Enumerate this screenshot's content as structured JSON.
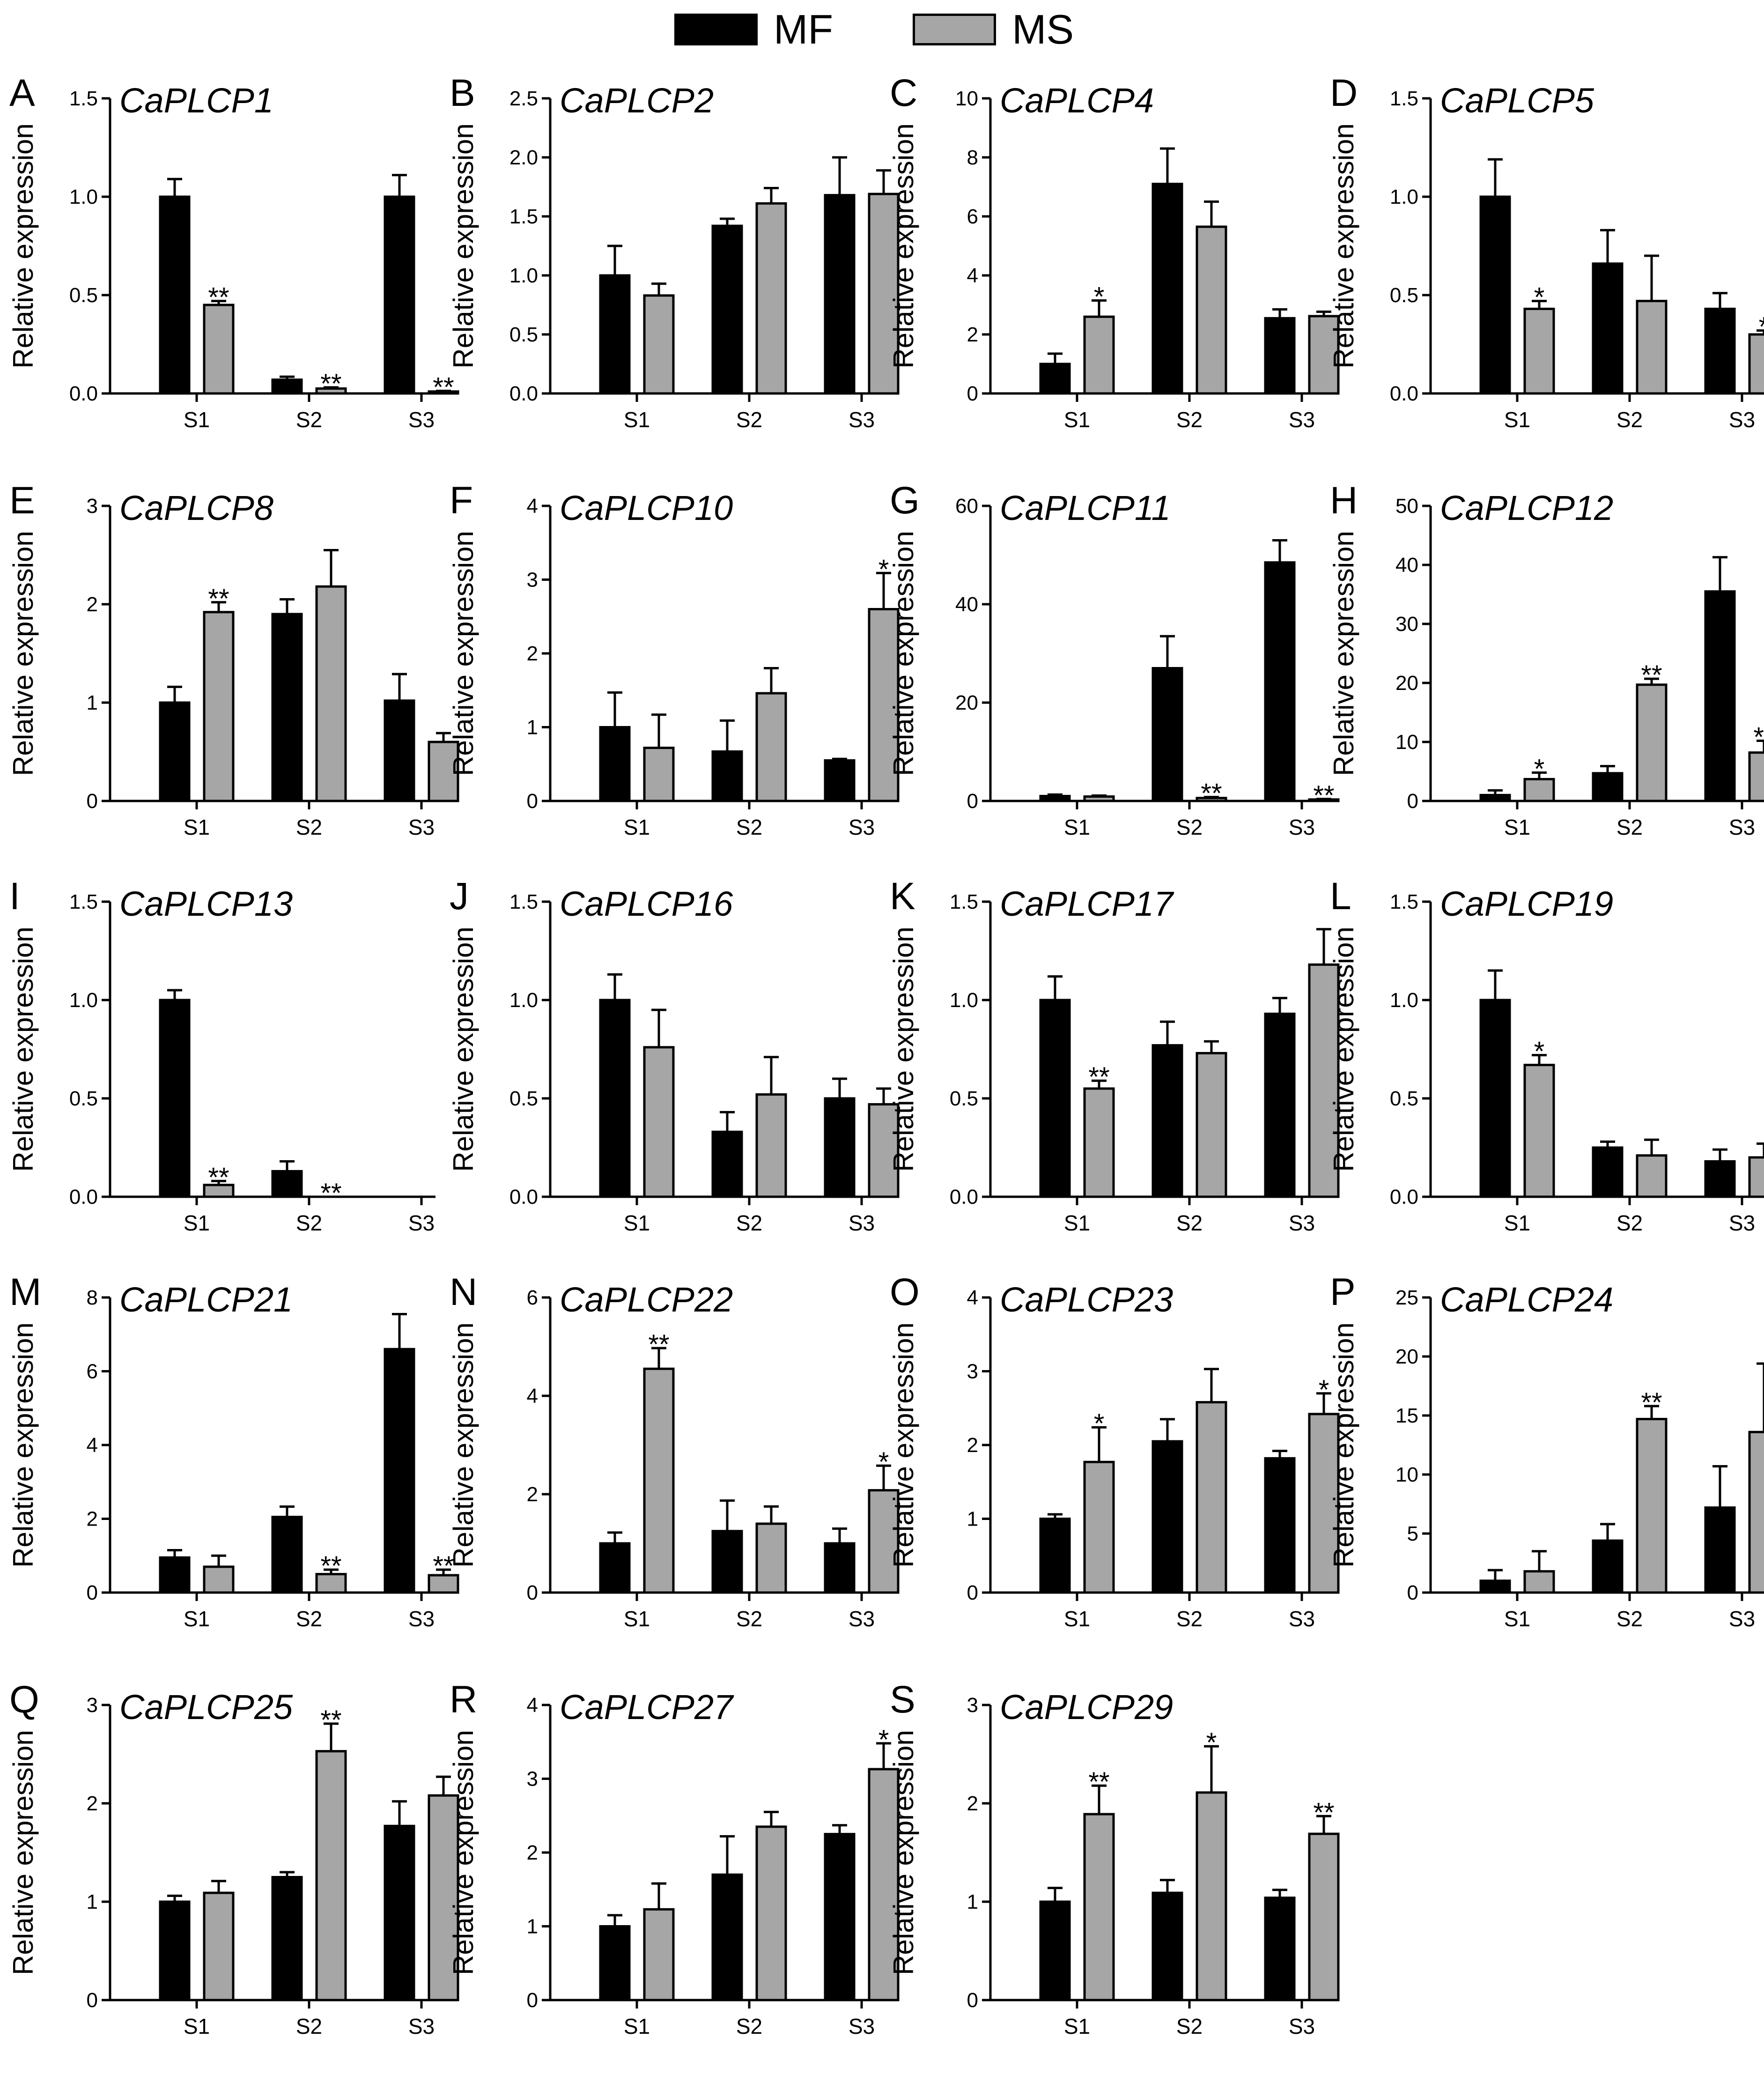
{
  "legend": [
    {
      "label": "MF",
      "color": "#000000"
    },
    {
      "label": "MS",
      "color": "#a6a6a6"
    }
  ],
  "colors": {
    "MF": "#000000",
    "MS": "#a6a6a6",
    "axis": "#000000"
  },
  "chart_data": [
    {
      "panel": "A",
      "title": "CaPLCP1",
      "type": "bar",
      "ylabel": "Relative expression",
      "categories": [
        "S1",
        "S2",
        "S3"
      ],
      "ylim": [
        0,
        1.5
      ],
      "yticks": [
        "0.0",
        "0.5",
        "1.0",
        "1.5"
      ],
      "series": [
        {
          "name": "MF",
          "values": [
            1.0,
            0.07,
            1.0
          ],
          "errors": [
            0.09,
            0.015,
            0.11
          ]
        },
        {
          "name": "MS",
          "values": [
            0.45,
            0.025,
            0.01
          ],
          "errors": [
            0.02,
            0.006,
            0.003
          ]
        }
      ],
      "annotations": [
        {
          "series": "MS",
          "category": "S1",
          "text": "**"
        },
        {
          "series": "MS",
          "category": "S2",
          "text": "**"
        },
        {
          "series": "MS",
          "category": "S3",
          "text": "**"
        }
      ]
    },
    {
      "panel": "B",
      "title": "CaPLCP2",
      "type": "bar",
      "ylabel": "Relative expression",
      "categories": [
        "S1",
        "S2",
        "S3"
      ],
      "ylim": [
        0,
        2.5
      ],
      "yticks": [
        "0.0",
        "0.5",
        "1.0",
        "1.5",
        "2.0",
        "2.5"
      ],
      "series": [
        {
          "name": "MF",
          "values": [
            1.0,
            1.42,
            1.68
          ],
          "errors": [
            0.25,
            0.06,
            0.32
          ]
        },
        {
          "name": "MS",
          "values": [
            0.83,
            1.61,
            1.69
          ],
          "errors": [
            0.1,
            0.13,
            0.2
          ]
        }
      ],
      "annotations": []
    },
    {
      "panel": "C",
      "title": "CaPLCP4",
      "type": "bar",
      "ylabel": "Relative expression",
      "categories": [
        "S1",
        "S2",
        "S3"
      ],
      "ylim": [
        0,
        10
      ],
      "yticks": [
        "0",
        "2",
        "4",
        "6",
        "8",
        "10"
      ],
      "series": [
        {
          "name": "MF",
          "values": [
            1.0,
            7.1,
            2.55
          ],
          "errors": [
            0.35,
            1.2,
            0.3
          ]
        },
        {
          "name": "MS",
          "values": [
            2.6,
            5.65,
            2.62
          ],
          "errors": [
            0.55,
            0.85,
            0.15
          ]
        }
      ],
      "annotations": [
        {
          "series": "MS",
          "category": "S1",
          "text": "*"
        }
      ]
    },
    {
      "panel": "D",
      "title": "CaPLCP5",
      "type": "bar",
      "ylabel": "Relative expression",
      "categories": [
        "S1",
        "S2",
        "S3"
      ],
      "ylim": [
        0,
        1.5
      ],
      "yticks": [
        "0.0",
        "0.5",
        "1.0",
        "1.5"
      ],
      "series": [
        {
          "name": "MF",
          "values": [
            1.0,
            0.66,
            0.43
          ],
          "errors": [
            0.19,
            0.17,
            0.08
          ]
        },
        {
          "name": "MS",
          "values": [
            0.43,
            0.47,
            0.3
          ],
          "errors": [
            0.04,
            0.23,
            0.02
          ]
        }
      ],
      "annotations": [
        {
          "series": "MS",
          "category": "S1",
          "text": "*"
        },
        {
          "series": "MS",
          "category": "S3",
          "text": "*"
        }
      ]
    },
    {
      "panel": "E",
      "title": "CaPLCP8",
      "type": "bar",
      "ylabel": "Relative expression",
      "categories": [
        "S1",
        "S2",
        "S3"
      ],
      "ylim": [
        0,
        3
      ],
      "yticks": [
        "0",
        "1",
        "2",
        "3"
      ],
      "series": [
        {
          "name": "MF",
          "values": [
            1.0,
            1.9,
            1.02
          ],
          "errors": [
            0.16,
            0.15,
            0.27
          ]
        },
        {
          "name": "MS",
          "values": [
            1.92,
            2.18,
            0.6
          ],
          "errors": [
            0.1,
            0.37,
            0.09
          ]
        }
      ],
      "annotations": [
        {
          "series": "MS",
          "category": "S1",
          "text": "**"
        }
      ]
    },
    {
      "panel": "F",
      "title": "CaPLCP10",
      "type": "bar",
      "ylabel": "Relative expression",
      "categories": [
        "S1",
        "S2",
        "S3"
      ],
      "ylim": [
        0,
        4
      ],
      "yticks": [
        "0",
        "1",
        "2",
        "3",
        "4"
      ],
      "series": [
        {
          "name": "MF",
          "values": [
            1.0,
            0.67,
            0.55
          ],
          "errors": [
            0.47,
            0.42,
            0.02
          ]
        },
        {
          "name": "MS",
          "values": [
            0.72,
            1.46,
            2.6
          ],
          "errors": [
            0.45,
            0.34,
            0.49
          ]
        }
      ],
      "annotations": [
        {
          "series": "MS",
          "category": "S3",
          "text": "*"
        }
      ]
    },
    {
      "panel": "G",
      "title": "CaPLCP11",
      "type": "bar",
      "ylabel": "Relative expression",
      "categories": [
        "S1",
        "S2",
        "S3"
      ],
      "ylim": [
        0,
        60
      ],
      "yticks": [
        "0",
        "20",
        "40",
        "60"
      ],
      "series": [
        {
          "name": "MF",
          "values": [
            1.0,
            27.0,
            48.5
          ],
          "errors": [
            0.3,
            6.5,
            4.5
          ]
        },
        {
          "name": "MS",
          "values": [
            0.9,
            0.6,
            0.3
          ],
          "errors": [
            0.2,
            0.2,
            0.1
          ]
        }
      ],
      "annotations": [
        {
          "series": "MS",
          "category": "S2",
          "text": "**"
        },
        {
          "series": "MS",
          "category": "S3",
          "text": "**"
        }
      ]
    },
    {
      "panel": "H",
      "title": "CaPLCP12",
      "type": "bar",
      "ylabel": "Relative expression",
      "categories": [
        "S1",
        "S2",
        "S3"
      ],
      "ylim": [
        0,
        50
      ],
      "yticks": [
        "0",
        "10",
        "20",
        "30",
        "40",
        "50"
      ],
      "series": [
        {
          "name": "MF",
          "values": [
            1.0,
            4.7,
            35.5
          ],
          "errors": [
            0.8,
            1.2,
            5.8
          ]
        },
        {
          "name": "MS",
          "values": [
            3.7,
            19.7,
            8.2
          ],
          "errors": [
            1.1,
            1.0,
            2.0
          ]
        }
      ],
      "annotations": [
        {
          "series": "MS",
          "category": "S1",
          "text": "*"
        },
        {
          "series": "MS",
          "category": "S2",
          "text": "**"
        },
        {
          "series": "MS",
          "category": "S3",
          "text": "**"
        }
      ]
    },
    {
      "panel": "I",
      "title": "CaPLCP13",
      "type": "bar",
      "ylabel": "Relative expression",
      "categories": [
        "S1",
        "S2",
        "S3"
      ],
      "ylim": [
        0,
        1.5
      ],
      "yticks": [
        "0.0",
        "0.5",
        "1.0",
        "1.5"
      ],
      "series": [
        {
          "name": "MF",
          "values": [
            1.0,
            0.13,
            0.0
          ],
          "errors": [
            0.05,
            0.05,
            0
          ]
        },
        {
          "name": "MS",
          "values": [
            0.06,
            0.0,
            0.0
          ],
          "errors": [
            0.02,
            0,
            0
          ]
        }
      ],
      "annotations": [
        {
          "series": "MS",
          "category": "S1",
          "text": "**"
        },
        {
          "series": "MS",
          "category": "S2",
          "text": "**"
        }
      ]
    },
    {
      "panel": "J",
      "title": "CaPLCP16",
      "type": "bar",
      "ylabel": "Relative expression",
      "categories": [
        "S1",
        "S2",
        "S3"
      ],
      "ylim": [
        0,
        1.5
      ],
      "yticks": [
        "0.0",
        "0.5",
        "1.0",
        "1.5"
      ],
      "series": [
        {
          "name": "MF",
          "values": [
            1.0,
            0.33,
            0.5
          ],
          "errors": [
            0.13,
            0.1,
            0.1
          ]
        },
        {
          "name": "MS",
          "values": [
            0.76,
            0.52,
            0.47
          ],
          "errors": [
            0.19,
            0.19,
            0.08
          ]
        }
      ],
      "annotations": []
    },
    {
      "panel": "K",
      "title": "CaPLCP17",
      "type": "bar",
      "ylabel": "Relative expression",
      "categories": [
        "S1",
        "S2",
        "S3"
      ],
      "ylim": [
        0,
        1.5
      ],
      "yticks": [
        "0.0",
        "0.5",
        "1.0",
        "1.5"
      ],
      "series": [
        {
          "name": "MF",
          "values": [
            1.0,
            0.77,
            0.93
          ],
          "errors": [
            0.12,
            0.12,
            0.08
          ]
        },
        {
          "name": "MS",
          "values": [
            0.55,
            0.73,
            1.18
          ],
          "errors": [
            0.04,
            0.06,
            0.18
          ]
        }
      ],
      "annotations": [
        {
          "series": "MS",
          "category": "S1",
          "text": "**"
        }
      ]
    },
    {
      "panel": "L",
      "title": "CaPLCP19",
      "type": "bar",
      "ylabel": "Relative expression",
      "categories": [
        "S1",
        "S2",
        "S3"
      ],
      "ylim": [
        0,
        1.5
      ],
      "yticks": [
        "0.0",
        "0.5",
        "1.0",
        "1.5"
      ],
      "series": [
        {
          "name": "MF",
          "values": [
            1.0,
            0.25,
            0.18
          ],
          "errors": [
            0.15,
            0.03,
            0.06
          ]
        },
        {
          "name": "MS",
          "values": [
            0.67,
            0.21,
            0.2
          ],
          "errors": [
            0.05,
            0.08,
            0.07
          ]
        }
      ],
      "annotations": [
        {
          "series": "MS",
          "category": "S1",
          "text": "*"
        }
      ]
    },
    {
      "panel": "M",
      "title": "CaPLCP21",
      "type": "bar",
      "ylabel": "Relative expression",
      "categories": [
        "S1",
        "S2",
        "S3"
      ],
      "ylim": [
        0,
        8
      ],
      "yticks": [
        "0",
        "2",
        "4",
        "6",
        "8"
      ],
      "series": [
        {
          "name": "MF",
          "values": [
            0.95,
            2.05,
            6.6
          ],
          "errors": [
            0.2,
            0.28,
            0.95
          ]
        },
        {
          "name": "MS",
          "values": [
            0.7,
            0.5,
            0.47
          ],
          "errors": [
            0.3,
            0.12,
            0.15
          ]
        }
      ],
      "annotations": [
        {
          "series": "MS",
          "category": "S2",
          "text": "**"
        },
        {
          "series": "MS",
          "category": "S3",
          "text": "**"
        }
      ]
    },
    {
      "panel": "N",
      "title": "CaPLCP22",
      "type": "bar",
      "ylabel": "Relative expression",
      "categories": [
        "S1",
        "S2",
        "S3"
      ],
      "ylim": [
        0,
        6
      ],
      "yticks": [
        "0",
        "2",
        "4",
        "6"
      ],
      "series": [
        {
          "name": "MF",
          "values": [
            1.0,
            1.25,
            1.0
          ],
          "errors": [
            0.22,
            0.62,
            0.3
          ]
        },
        {
          "name": "MS",
          "values": [
            4.55,
            1.4,
            2.08
          ],
          "errors": [
            0.42,
            0.35,
            0.5
          ]
        }
      ],
      "annotations": [
        {
          "series": "MS",
          "category": "S1",
          "text": "**"
        },
        {
          "series": "MS",
          "category": "S3",
          "text": "*"
        }
      ]
    },
    {
      "panel": "O",
      "title": "CaPLCP23",
      "type": "bar",
      "ylabel": "Relative expression",
      "categories": [
        "S1",
        "S2",
        "S3"
      ],
      "ylim": [
        0,
        4
      ],
      "yticks": [
        "0",
        "1",
        "2",
        "3",
        "4"
      ],
      "series": [
        {
          "name": "MF",
          "values": [
            1.0,
            2.05,
            1.82
          ],
          "errors": [
            0.06,
            0.3,
            0.1
          ]
        },
        {
          "name": "MS",
          "values": [
            1.77,
            2.58,
            2.42
          ],
          "errors": [
            0.47,
            0.45,
            0.28
          ]
        }
      ],
      "annotations": [
        {
          "series": "MS",
          "category": "S1",
          "text": "*"
        },
        {
          "series": "MS",
          "category": "S3",
          "text": "*"
        }
      ]
    },
    {
      "panel": "P",
      "title": "CaPLCP24",
      "type": "bar",
      "ylabel": "Relative expression",
      "categories": [
        "S1",
        "S2",
        "S3"
      ],
      "ylim": [
        0,
        25
      ],
      "yticks": [
        "0",
        "5",
        "10",
        "15",
        "20",
        "25"
      ],
      "series": [
        {
          "name": "MF",
          "values": [
            1.0,
            4.4,
            7.2
          ],
          "errors": [
            0.9,
            1.4,
            3.5
          ]
        },
        {
          "name": "MS",
          "values": [
            1.8,
            14.7,
            13.6
          ],
          "errors": [
            1.7,
            1.1,
            5.8
          ]
        }
      ],
      "annotations": [
        {
          "series": "MS",
          "category": "S2",
          "text": "**"
        }
      ]
    },
    {
      "panel": "Q",
      "title": "CaPLCP25",
      "type": "bar",
      "ylabel": "Relative expression",
      "categories": [
        "S1",
        "S2",
        "S3"
      ],
      "ylim": [
        0,
        3
      ],
      "yticks": [
        "0",
        "1",
        "2",
        "3"
      ],
      "series": [
        {
          "name": "MF",
          "values": [
            1.0,
            1.25,
            1.77
          ],
          "errors": [
            0.06,
            0.05,
            0.25
          ]
        },
        {
          "name": "MS",
          "values": [
            1.09,
            2.53,
            2.08
          ],
          "errors": [
            0.12,
            0.28,
            0.19
          ]
        }
      ],
      "annotations": [
        {
          "series": "MS",
          "category": "S2",
          "text": "**"
        }
      ]
    },
    {
      "panel": "R",
      "title": "CaPLCP27",
      "type": "bar",
      "ylabel": "Relative expression",
      "categories": [
        "S1",
        "S2",
        "S3"
      ],
      "ylim": [
        0,
        4
      ],
      "yticks": [
        "0",
        "1",
        "2",
        "3",
        "4"
      ],
      "series": [
        {
          "name": "MF",
          "values": [
            1.0,
            1.7,
            2.25
          ],
          "errors": [
            0.15,
            0.52,
            0.12
          ]
        },
        {
          "name": "MS",
          "values": [
            1.23,
            2.35,
            3.13
          ],
          "errors": [
            0.35,
            0.2,
            0.35
          ]
        }
      ],
      "annotations": [
        {
          "series": "MS",
          "category": "S3",
          "text": "*"
        }
      ]
    },
    {
      "panel": "S",
      "title": "CaPLCP29",
      "type": "bar",
      "ylabel": "Relative expression",
      "categories": [
        "S1",
        "S2",
        "S3"
      ],
      "ylim": [
        0,
        3
      ],
      "yticks": [
        "0",
        "1",
        "2",
        "3"
      ],
      "series": [
        {
          "name": "MF",
          "values": [
            1.0,
            1.09,
            1.04
          ],
          "errors": [
            0.14,
            0.13,
            0.08
          ]
        },
        {
          "name": "MS",
          "values": [
            1.89,
            2.11,
            1.69
          ],
          "errors": [
            0.29,
            0.47,
            0.18
          ]
        }
      ],
      "annotations": [
        {
          "series": "MS",
          "category": "S1",
          "text": "**"
        },
        {
          "series": "MS",
          "category": "S2",
          "text": "*"
        },
        {
          "series": "MS",
          "category": "S3",
          "text": "**"
        }
      ]
    }
  ]
}
